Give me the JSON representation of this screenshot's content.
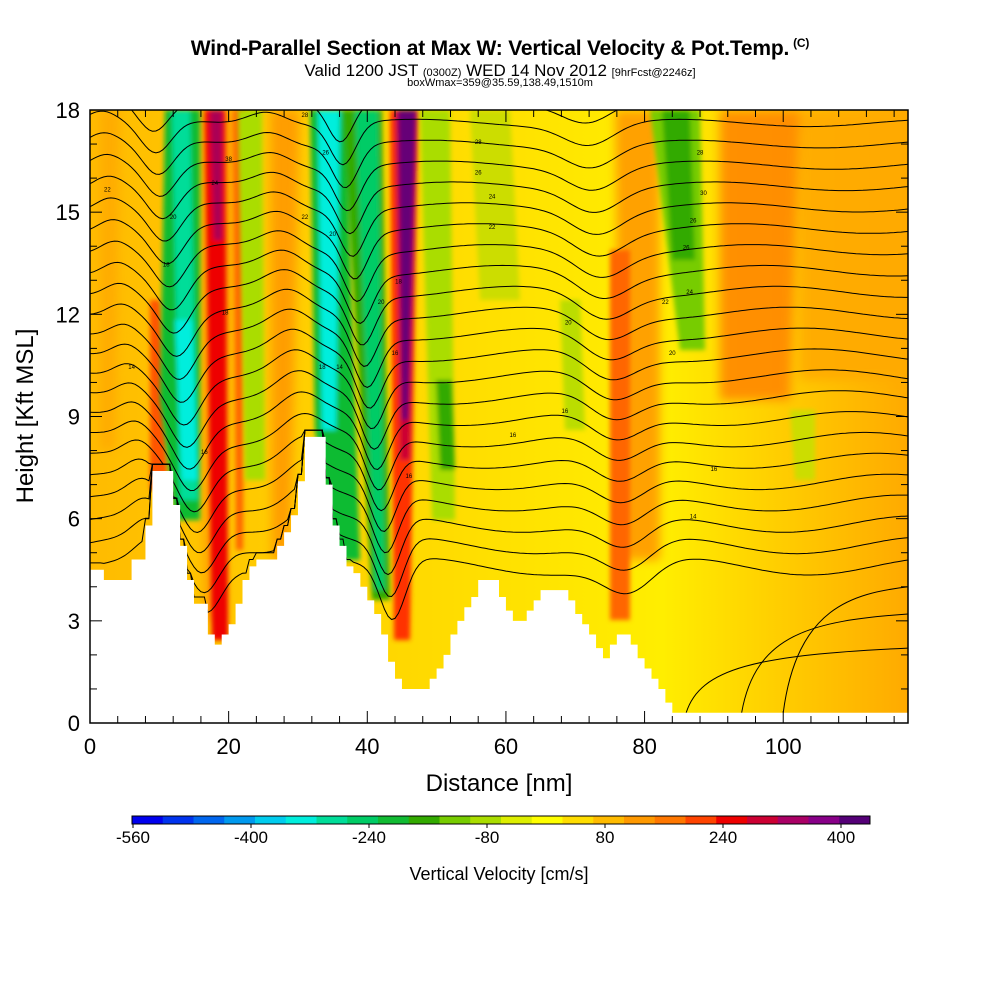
{
  "title": "Wind-Parallel Section at Max W: Vertical Velocity & Pot.Temp.",
  "copyright_mark": "(C)",
  "valid_main": "Valid 1200 JST",
  "valid_zone": "(0300Z)",
  "valid_date": "WED 14 Nov 2012",
  "valid_fcst": "[9hrFcst@2246z]",
  "box_info": "boxWmax=359@35.59,138.49,1510m",
  "chart_data": {
    "type": "heatmap",
    "xlabel": "Distance [nm]",
    "ylabel": "Height [Kft MSL]",
    "xlim": [
      0,
      118
    ],
    "ylim": [
      0,
      18
    ],
    "x_ticks": [
      "0",
      "20",
      "40",
      "60",
      "80",
      "100"
    ],
    "y_ticks": [
      "0",
      "3",
      "6",
      "9",
      "12",
      "15",
      "18"
    ],
    "colorbar": {
      "title": "Vertical Velocity [cm/s]",
      "labels": [
        "-560",
        "-400",
        "-240",
        "-80",
        "80",
        "240",
        "400"
      ],
      "colors": [
        "#0000ee",
        "#0033ee",
        "#0066ee",
        "#0099ee",
        "#00ccee",
        "#00eedd",
        "#00dd99",
        "#00cc66",
        "#11bb33",
        "#33aa00",
        "#77cc00",
        "#aadd00",
        "#ddee00",
        "#ffff00",
        "#ffdd00",
        "#ffbb00",
        "#ff9900",
        "#ff7700",
        "#ff4400",
        "#ee0000",
        "#cc0033",
        "#aa0066",
        "#880088",
        "#550077"
      ]
    },
    "terrain_kft": [
      [
        0,
        4.5
      ],
      [
        2,
        4.5
      ],
      [
        2,
        4.2
      ],
      [
        6,
        4.2
      ],
      [
        6,
        4.8
      ],
      [
        8,
        4.8
      ],
      [
        8,
        5.8
      ],
      [
        9,
        5.8
      ],
      [
        9,
        7.4
      ],
      [
        12,
        7.4
      ],
      [
        12,
        6.4
      ],
      [
        13,
        6.4
      ],
      [
        13,
        5.2
      ],
      [
        14,
        5.2
      ],
      [
        14,
        4.2
      ],
      [
        15,
        4.2
      ],
      [
        15,
        3.5
      ],
      [
        17,
        3.5
      ],
      [
        17,
        2.6
      ],
      [
        18,
        2.6
      ],
      [
        18,
        2.3
      ],
      [
        19,
        2.3
      ],
      [
        19,
        2.6
      ],
      [
        20,
        2.6
      ],
      [
        20,
        2.9
      ],
      [
        21,
        2.9
      ],
      [
        21,
        3.5
      ],
      [
        22,
        3.5
      ],
      [
        22,
        4.2
      ],
      [
        23,
        4.2
      ],
      [
        23,
        4.6
      ],
      [
        24,
        4.6
      ],
      [
        24,
        4.8
      ],
      [
        27,
        4.8
      ],
      [
        27,
        5.2
      ],
      [
        28,
        5.2
      ],
      [
        28,
        5.6
      ],
      [
        29,
        5.6
      ],
      [
        29,
        6.1
      ],
      [
        30,
        6.1
      ],
      [
        30,
        7.1
      ],
      [
        31,
        7.1
      ],
      [
        31,
        8.4
      ],
      [
        34,
        8.4
      ],
      [
        34,
        7.0
      ],
      [
        35,
        7.0
      ],
      [
        35,
        5.8
      ],
      [
        36,
        5.8
      ],
      [
        36,
        5.2
      ],
      [
        37,
        5.2
      ],
      [
        37,
        4.6
      ],
      [
        38,
        4.6
      ],
      [
        38,
        4.4
      ],
      [
        39,
        4.4
      ],
      [
        39,
        4.0
      ],
      [
        40,
        4.0
      ],
      [
        40,
        3.6
      ],
      [
        41,
        3.6
      ],
      [
        41,
        3.2
      ],
      [
        42,
        3.2
      ],
      [
        42,
        2.6
      ],
      [
        43,
        2.6
      ],
      [
        43,
        1.8
      ],
      [
        44,
        1.8
      ],
      [
        44,
        1.3
      ],
      [
        45,
        1.3
      ],
      [
        45,
        1.0
      ],
      [
        49,
        1.0
      ],
      [
        49,
        1.3
      ],
      [
        50,
        1.3
      ],
      [
        50,
        1.6
      ],
      [
        51,
        1.6
      ],
      [
        51,
        2.0
      ],
      [
        52,
        2.0
      ],
      [
        52,
        2.6
      ],
      [
        53,
        2.6
      ],
      [
        53,
        3.0
      ],
      [
        54,
        3.0
      ],
      [
        54,
        3.4
      ],
      [
        55,
        3.4
      ],
      [
        55,
        3.7
      ],
      [
        56,
        3.7
      ],
      [
        56,
        4.2
      ],
      [
        59,
        4.2
      ],
      [
        59,
        3.7
      ],
      [
        60,
        3.7
      ],
      [
        60,
        3.3
      ],
      [
        61,
        3.3
      ],
      [
        61,
        3.0
      ],
      [
        63,
        3.0
      ],
      [
        63,
        3.3
      ],
      [
        64,
        3.3
      ],
      [
        64,
        3.6
      ],
      [
        65,
        3.6
      ],
      [
        65,
        3.9
      ],
      [
        69,
        3.9
      ],
      [
        69,
        3.6
      ],
      [
        70,
        3.6
      ],
      [
        70,
        3.2
      ],
      [
        71,
        3.2
      ],
      [
        71,
        2.9
      ],
      [
        72,
        2.9
      ],
      [
        72,
        2.6
      ],
      [
        73,
        2.6
      ],
      [
        73,
        2.2
      ],
      [
        74,
        2.2
      ],
      [
        74,
        1.9
      ],
      [
        75,
        1.9
      ],
      [
        75,
        2.3
      ],
      [
        76,
        2.3
      ],
      [
        76,
        2.6
      ],
      [
        78,
        2.6
      ],
      [
        78,
        2.3
      ],
      [
        79,
        2.3
      ],
      [
        79,
        1.9
      ],
      [
        80,
        1.9
      ],
      [
        80,
        1.6
      ],
      [
        81,
        1.6
      ],
      [
        81,
        1.3
      ],
      [
        82,
        1.3
      ],
      [
        82,
        1.0
      ],
      [
        83,
        1.0
      ],
      [
        83,
        0.6
      ],
      [
        84,
        0.6
      ],
      [
        84,
        0.3
      ],
      [
        118,
        0.3
      ]
    ],
    "isentrope_labels": [
      {
        "text": "22",
        "x": 2.5,
        "y": 15.6
      },
      {
        "text": "20",
        "x": 12,
        "y": 14.8
      },
      {
        "text": "18",
        "x": 11,
        "y": 13.4
      },
      {
        "text": "14",
        "x": 6,
        "y": 10.4
      },
      {
        "text": "38",
        "x": 20,
        "y": 16.5
      },
      {
        "text": "24",
        "x": 18,
        "y": 15.8
      },
      {
        "text": "18",
        "x": 19.5,
        "y": 12.0
      },
      {
        "text": "16",
        "x": 16.5,
        "y": 7.9
      },
      {
        "text": "28",
        "x": 31,
        "y": 17.8
      },
      {
        "text": "26",
        "x": 34,
        "y": 16.7
      },
      {
        "text": "22",
        "x": 31,
        "y": 14.8
      },
      {
        "text": "20",
        "x": 35,
        "y": 14.3
      },
      {
        "text": "18",
        "x": 33.5,
        "y": 10.4
      },
      {
        "text": "14",
        "x": 36,
        "y": 10.4
      },
      {
        "text": "20",
        "x": 42,
        "y": 12.3
      },
      {
        "text": "18",
        "x": 44.5,
        "y": 12.9
      },
      {
        "text": "16",
        "x": 44,
        "y": 10.8
      },
      {
        "text": "16",
        "x": 46,
        "y": 7.2
      },
      {
        "text": "28",
        "x": 56,
        "y": 17.0
      },
      {
        "text": "26",
        "x": 56,
        "y": 16.1
      },
      {
        "text": "24",
        "x": 58,
        "y": 15.4
      },
      {
        "text": "22",
        "x": 58,
        "y": 14.5
      },
      {
        "text": "20",
        "x": 69,
        "y": 11.7
      },
      {
        "text": "16",
        "x": 68.5,
        "y": 9.1
      },
      {
        "text": "16",
        "x": 61,
        "y": 8.4
      },
      {
        "text": "22",
        "x": 83,
        "y": 12.3
      },
      {
        "text": "20",
        "x": 84,
        "y": 10.8
      },
      {
        "text": "28",
        "x": 88,
        "y": 16.7
      },
      {
        "text": "30",
        "x": 88.5,
        "y": 15.5
      },
      {
        "text": "26",
        "x": 87,
        "y": 14.7
      },
      {
        "text": "26",
        "x": 86,
        "y": 13.9
      },
      {
        "text": "24",
        "x": 86.5,
        "y": 12.6
      },
      {
        "text": "16",
        "x": 90,
        "y": 7.4
      },
      {
        "text": "14",
        "x": 87,
        "y": 6.0
      }
    ]
  }
}
